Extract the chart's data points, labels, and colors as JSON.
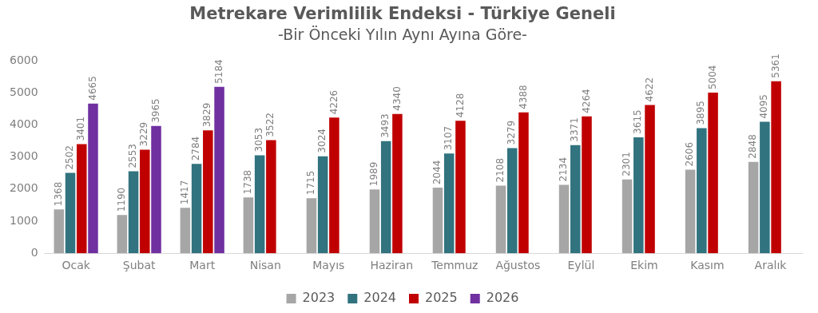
{
  "chart_data": {
    "type": "bar",
    "title": "Metrekare Verimlilik Endeksi - Türkiye Geneli",
    "subtitle": "-Bir Önceki Yılın Aynı Ayına Göre-",
    "categories": [
      "Ocak",
      "Şubat",
      "Mart",
      "Nisan",
      "Mayıs",
      "Haziran",
      "Temmuz",
      "Ağustos",
      "Eylül",
      "Ekim",
      "Kasım",
      "Aralık"
    ],
    "series": [
      {
        "name": "2023",
        "color": "#a6a6a6",
        "values": [
          1368,
          1190,
          1417,
          1738,
          1715,
          1989,
          2044,
          2108,
          2134,
          2301,
          2606,
          2848
        ]
      },
      {
        "name": "2024",
        "color": "#31737f",
        "values": [
          2502,
          2553,
          2784,
          3053,
          3024,
          3493,
          3107,
          3279,
          3371,
          3615,
          3895,
          4095
        ]
      },
      {
        "name": "2025",
        "color": "#c00000",
        "values": [
          3401,
          3229,
          3829,
          3522,
          4226,
          4340,
          4128,
          4388,
          4264,
          4622,
          5004,
          5361
        ]
      },
      {
        "name": "2026",
        "color": "#7030a0",
        "values": [
          4665,
          3965,
          5184,
          null,
          null,
          null,
          null,
          null,
          null,
          null,
          null,
          null
        ]
      }
    ],
    "ylim": [
      0,
      6000
    ],
    "yticks": [
      0,
      1000,
      2000,
      3000,
      4000,
      5000,
      6000
    ],
    "grid": false,
    "legend": "bottom",
    "data_labels": true
  }
}
